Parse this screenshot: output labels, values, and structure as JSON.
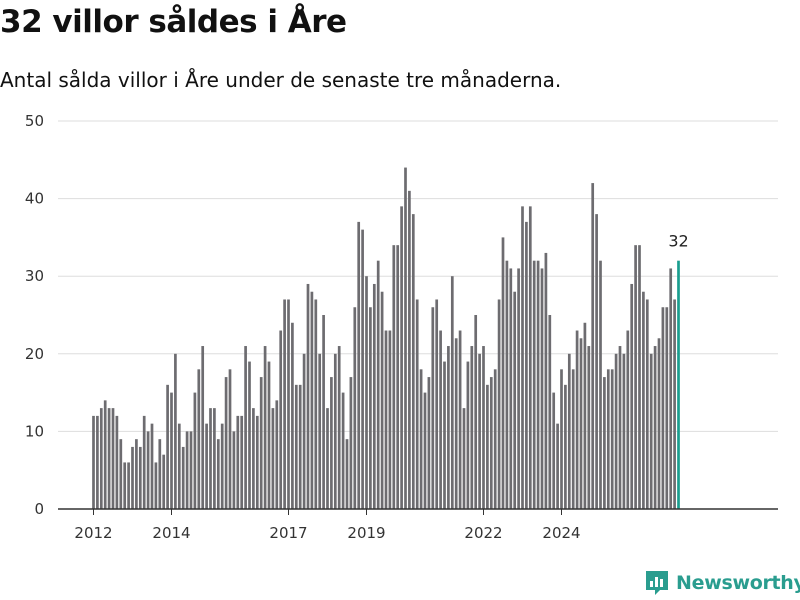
{
  "header": {
    "title": "32 villor såldes i Åre",
    "subtitle": "Antal sålda villor i Åre under de senaste tre månaderna."
  },
  "brand": {
    "name": "Newsworthy",
    "color": "#2a9d8f"
  },
  "chart_data": {
    "type": "bar",
    "title": "32 villor såldes i Åre",
    "subtitle": "Antal sålda villor i Åre under de senaste tre månaderna.",
    "xlabel": "",
    "ylabel": "",
    "ylim": [
      0,
      50
    ],
    "yticks": [
      0,
      10,
      20,
      30,
      40,
      50
    ],
    "xticks": [
      "2012",
      "2014",
      "2017",
      "2019",
      "2022",
      "2024"
    ],
    "xtick_index": [
      0,
      20,
      50,
      70,
      100,
      120
    ],
    "grid": true,
    "bar_color": "#6d6c70",
    "highlight_color": "#1a9e8f",
    "highlight_label": "32",
    "values": [
      12,
      12,
      13,
      14,
      13,
      13,
      12,
      9,
      6,
      6,
      8,
      9,
      8,
      12,
      10,
      11,
      6,
      9,
      7,
      16,
      15,
      20,
      11,
      8,
      10,
      10,
      15,
      18,
      21,
      11,
      13,
      13,
      9,
      11,
      17,
      18,
      10,
      12,
      12,
      21,
      19,
      13,
      12,
      17,
      21,
      19,
      13,
      14,
      23,
      27,
      27,
      24,
      16,
      16,
      20,
      29,
      28,
      27,
      20,
      25,
      13,
      17,
      20,
      21,
      15,
      9,
      17,
      26,
      37,
      36,
      30,
      26,
      29,
      32,
      28,
      23,
      23,
      34,
      34,
      39,
      44,
      41,
      38,
      27,
      18,
      15,
      17,
      26,
      27,
      23,
      19,
      21,
      30,
      22,
      23,
      13,
      19,
      21,
      25,
      20,
      21,
      16,
      17,
      18,
      27,
      35,
      32,
      31,
      28,
      31,
      39,
      37,
      39,
      32,
      32,
      31,
      33,
      25,
      15,
      11,
      18,
      16,
      20,
      18,
      23,
      22,
      24,
      21,
      42,
      38,
      32,
      17,
      18,
      18,
      20,
      21,
      20,
      23,
      29,
      34,
      34,
      28,
      27,
      20,
      21,
      22,
      26,
      26,
      31,
      27,
      32
    ]
  }
}
